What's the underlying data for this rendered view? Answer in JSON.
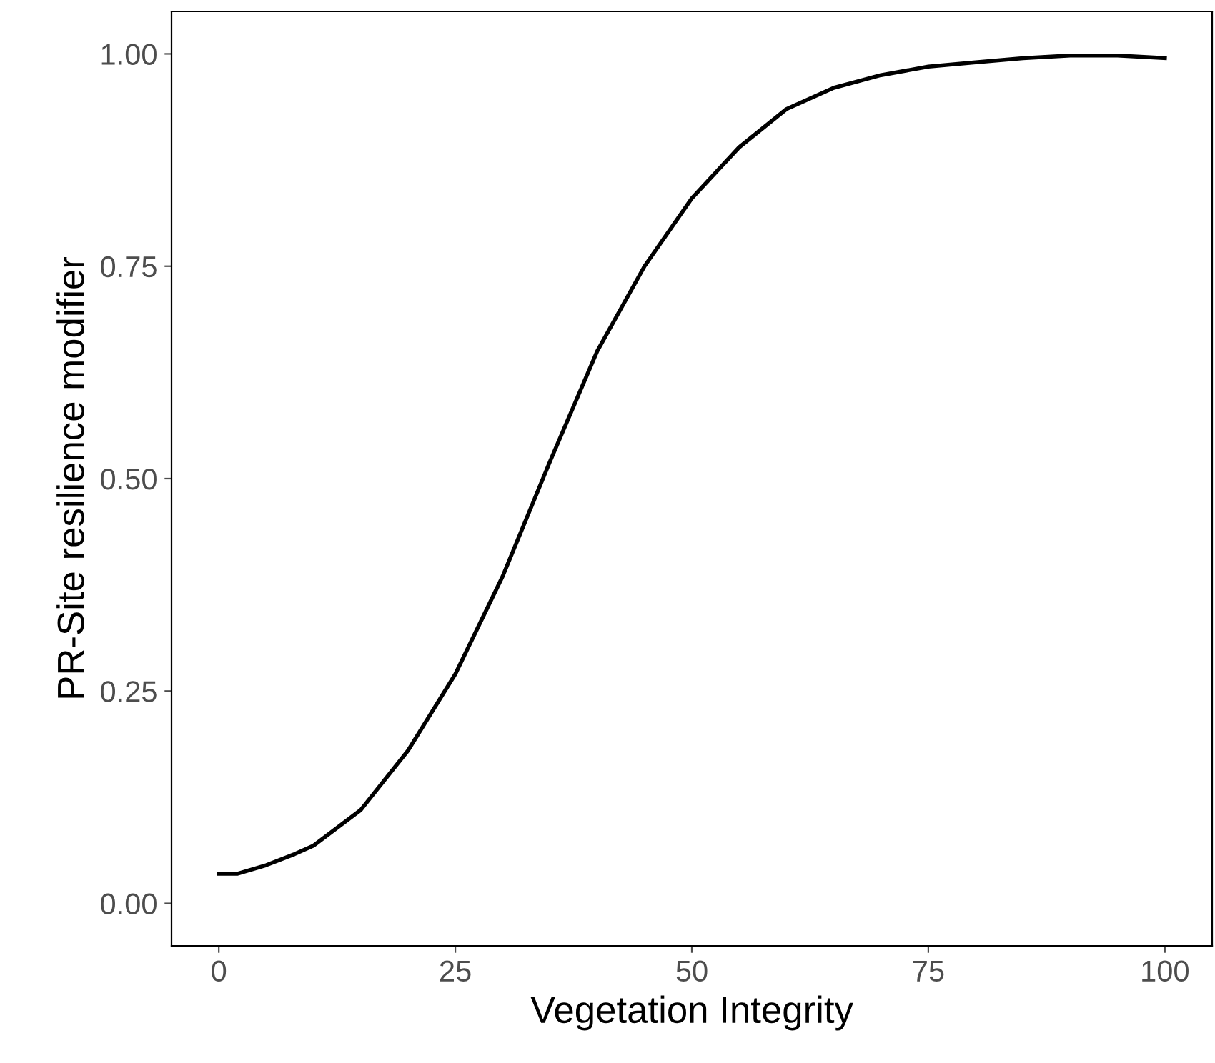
{
  "chart_data": {
    "type": "line",
    "xlabel": "Vegetation Integrity",
    "ylabel": "PR-Site resilience modifier",
    "series": [
      {
        "color": "#000000",
        "x": [
          0,
          2,
          5,
          8,
          10,
          15,
          20,
          25,
          30,
          35,
          40,
          45,
          50,
          55,
          60,
          65,
          70,
          75,
          80,
          85,
          90,
          95,
          100
        ],
        "values": [
          0.035,
          0.035,
          0.045,
          0.058,
          0.068,
          0.11,
          0.18,
          0.27,
          0.385,
          0.52,
          0.65,
          0.75,
          0.83,
          0.89,
          0.935,
          0.96,
          0.975,
          0.985,
          0.99,
          0.995,
          0.998,
          0.998,
          0.995
        ]
      }
    ],
    "xlim": [
      -5,
      105
    ],
    "ylim": [
      -0.05,
      1.05
    ],
    "xticks": [
      0,
      25,
      50,
      75,
      100
    ],
    "yticks": [
      {
        "value": 0,
        "label": "0.00"
      },
      {
        "value": 0.25,
        "label": "0.25"
      },
      {
        "value": 0.5,
        "label": "0.50"
      },
      {
        "value": 0.75,
        "label": "0.75"
      },
      {
        "value": 1,
        "label": "1.00"
      }
    ],
    "grid": false,
    "legend": false,
    "marker": "none",
    "line_style": "solid"
  }
}
